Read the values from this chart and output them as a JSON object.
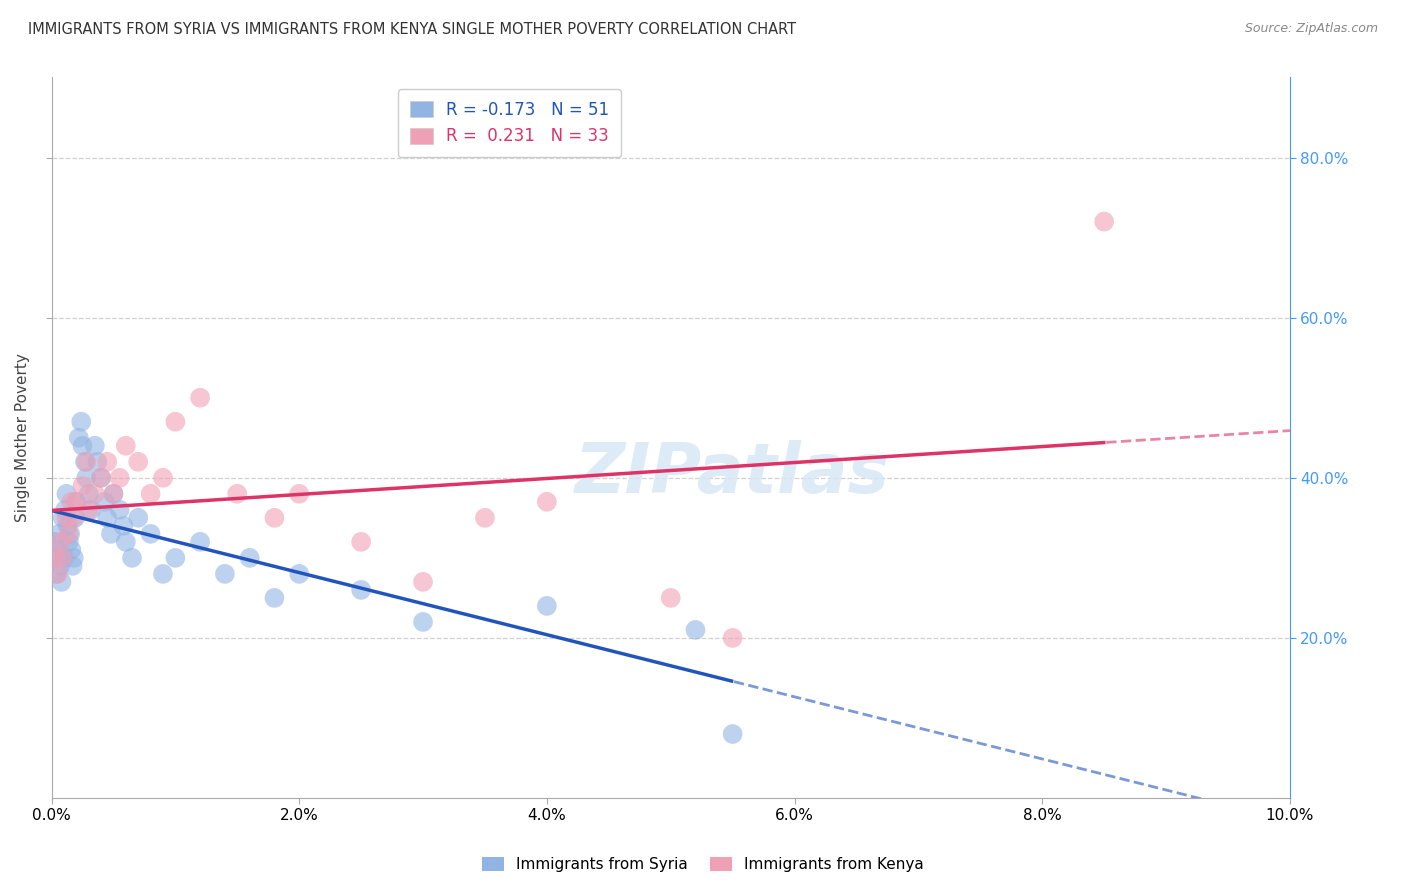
{
  "title": "IMMIGRANTS FROM SYRIA VS IMMIGRANTS FROM KENYA SINGLE MOTHER POVERTY CORRELATION CHART",
  "source": "Source: ZipAtlas.com",
  "ylabel": "Single Mother Poverty",
  "xlim": [
    0.0,
    10.0
  ],
  "ylim": [
    0.0,
    90.0
  ],
  "yticks_right": [
    20.0,
    40.0,
    60.0,
    80.0
  ],
  "xticks": [
    0.0,
    2.0,
    4.0,
    6.0,
    8.0,
    10.0
  ],
  "syria_color": "#92b4e3",
  "kenya_color": "#f0a0b5",
  "syria_line_color": "#2255bb",
  "kenya_line_color": "#dd3366",
  "legend_syria_label": "R = -0.173   N = 51",
  "legend_kenya_label": "R =  0.231   N = 33",
  "legend_footer_syria": "Immigrants from Syria",
  "legend_footer_kenya": "Immigrants from Kenya",
  "syria_R": -0.173,
  "kenya_R": 0.231,
  "background_color": "#ffffff",
  "grid_color": "#cccccc",
  "right_axis_color": "#4499ff",
  "syria_x": [
    0.02,
    0.03,
    0.04,
    0.05,
    0.06,
    0.07,
    0.08,
    0.09,
    0.1,
    0.11,
    0.12,
    0.13,
    0.14,
    0.15,
    0.16,
    0.17,
    0.18,
    0.19,
    0.2,
    0.22,
    0.24,
    0.25,
    0.27,
    0.28,
    0.3,
    0.32,
    0.35,
    0.37,
    0.4,
    0.43,
    0.45,
    0.48,
    0.5,
    0.55,
    0.58,
    0.6,
    0.65,
    0.7,
    0.8,
    0.9,
    1.0,
    1.2,
    1.4,
    1.6,
    1.8,
    2.0,
    2.5,
    3.0,
    4.0,
    5.2,
    5.5
  ],
  "syria_y": [
    32,
    30,
    28,
    31,
    33,
    29,
    27,
    35,
    30,
    36,
    38,
    34,
    32,
    33,
    31,
    29,
    30,
    35,
    37,
    45,
    47,
    44,
    42,
    40,
    38,
    36,
    44,
    42,
    40,
    37,
    35,
    33,
    38,
    36,
    34,
    32,
    30,
    35,
    33,
    28,
    30,
    32,
    28,
    30,
    25,
    28,
    26,
    22,
    24,
    21,
    8
  ],
  "kenya_x": [
    0.03,
    0.05,
    0.07,
    0.09,
    0.12,
    0.14,
    0.16,
    0.18,
    0.2,
    0.25,
    0.28,
    0.3,
    0.35,
    0.4,
    0.45,
    0.5,
    0.55,
    0.6,
    0.7,
    0.8,
    0.9,
    1.0,
    1.2,
    1.5,
    1.8,
    2.0,
    2.5,
    3.0,
    3.5,
    4.0,
    5.0,
    5.5,
    8.5
  ],
  "kenya_y": [
    30,
    28,
    32,
    30,
    35,
    33,
    37,
    35,
    37,
    39,
    42,
    36,
    38,
    40,
    42,
    38,
    40,
    44,
    42,
    38,
    40,
    47,
    50,
    38,
    35,
    38,
    32,
    27,
    35,
    37,
    25,
    20,
    72
  ],
  "syria_line_solid_end": 5.5,
  "kenya_line_solid_end": 8.5
}
